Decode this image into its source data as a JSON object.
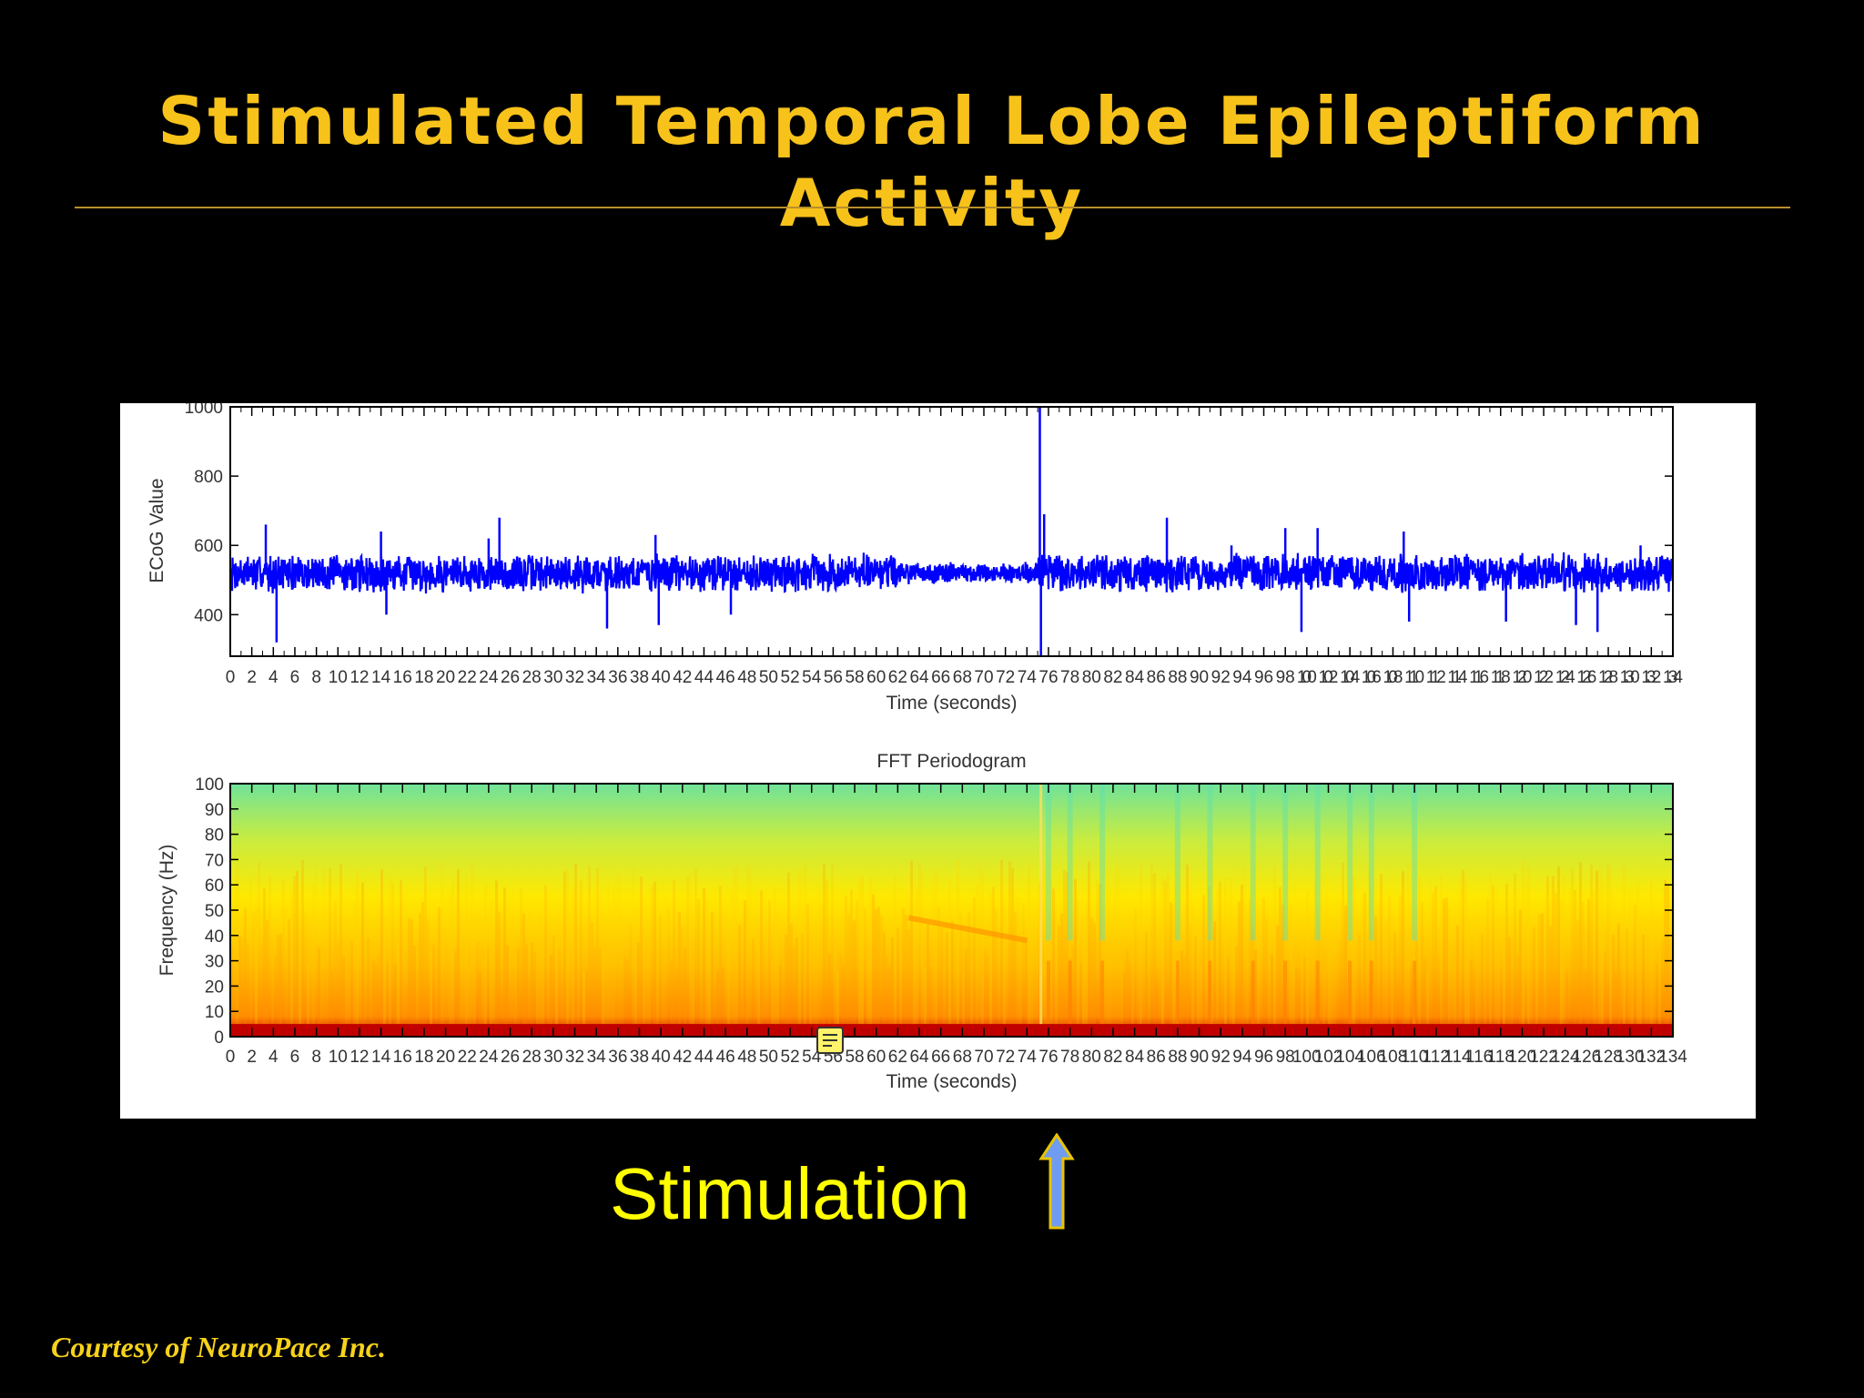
{
  "slide": {
    "title_line1": "Stimulated Temporal Lobe Epileptiform",
    "title_line2": "Activity",
    "stim_label": "Stimulation",
    "credit": "Courtesy of NeuroPace Inc.",
    "accent": "#f7c21a",
    "arrow_color": "#6f9cf0",
    "icons": [
      "arrow-up-icon",
      "note-icon"
    ]
  },
  "chart_data": [
    {
      "type": "line",
      "title": "",
      "xlabel": "Time (seconds)",
      "ylabel": "ECoG Value",
      "xlim": [
        0,
        134
      ],
      "ylim": [
        280,
        1000
      ],
      "yticks": [
        400,
        600,
        800,
        1000
      ],
      "xtick_step": 2,
      "series": [
        {
          "color": "#0000ff",
          "baseline": 520,
          "typical_range": [
            460,
            580
          ],
          "spike_events": [
            {
              "x": 3.3,
              "y": 660
            },
            {
              "x": 4.3,
              "y": 320
            },
            {
              "x": 14.0,
              "y": 640
            },
            {
              "x": 14.5,
              "y": 400
            },
            {
              "x": 24.0,
              "y": 620
            },
            {
              "x": 25.0,
              "y": 680
            },
            {
              "x": 35.0,
              "y": 360
            },
            {
              "x": 39.5,
              "y": 630
            },
            {
              "x": 39.8,
              "y": 370
            },
            {
              "x": 46.5,
              "y": 400
            },
            {
              "x": 75.2,
              "y": 1000
            },
            {
              "x": 75.3,
              "y": 280
            },
            {
              "x": 75.6,
              "y": 690
            },
            {
              "x": 87.0,
              "y": 680
            },
            {
              "x": 93.0,
              "y": 600
            },
            {
              "x": 98.0,
              "y": 650
            },
            {
              "x": 99.5,
              "y": 350
            },
            {
              "x": 101.0,
              "y": 650
            },
            {
              "x": 109.0,
              "y": 640
            },
            {
              "x": 109.5,
              "y": 380
            },
            {
              "x": 118.5,
              "y": 380
            },
            {
              "x": 125.0,
              "y": 370
            },
            {
              "x": 127.0,
              "y": 350
            },
            {
              "x": 131.0,
              "y": 600
            }
          ]
        }
      ]
    },
    {
      "type": "heatmap",
      "title": "FFT Periodogram",
      "xlabel": "Time (seconds)",
      "ylabel": "Frequency (Hz)",
      "xlim": [
        0,
        134
      ],
      "ylim": [
        0,
        100
      ],
      "yticks": [
        0,
        10,
        20,
        30,
        40,
        50,
        60,
        70,
        80,
        90,
        100
      ],
      "xtick_step": 2,
      "colormap": [
        "#c80000",
        "#ff7a00",
        "#ffff00",
        "#3fe0a0"
      ],
      "stimulation_time": 75.3,
      "bright_columns_after_stim": [
        76,
        78,
        81,
        88,
        91,
        95,
        98,
        101,
        104,
        106,
        110
      ],
      "feature_band": {
        "x_range": [
          63,
          74
        ],
        "freq": 42
      }
    }
  ]
}
